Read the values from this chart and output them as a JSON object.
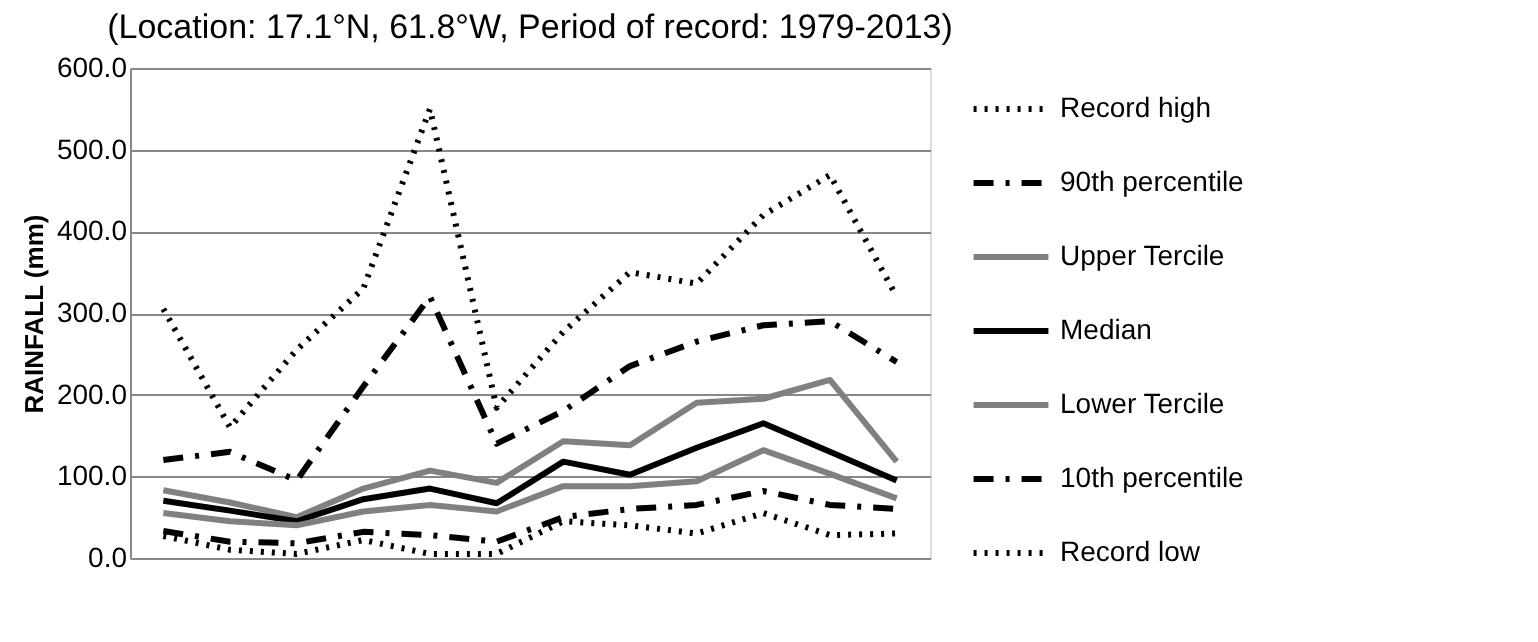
{
  "chart_data": {
    "type": "line",
    "title": "(Location: 17.1°N, 61.8°W, Period of record: 1979-2013)",
    "ylabel": "RAINFALL (mm)",
    "categories": [
      null,
      null,
      null,
      null,
      null,
      null,
      null,
      null,
      null,
      null,
      null,
      null
    ],
    "series": [
      {
        "name": "Record high",
        "color": "#000000",
        "line_style": "dotted",
        "values": [
          305,
          160,
          255,
          330,
          550,
          184,
          277,
          350,
          336,
          420,
          469,
          320
        ]
      },
      {
        "name": "90th percentile",
        "color": "#000000",
        "line_style": "dashdot",
        "values": [
          120,
          130,
          95,
          210,
          320,
          140,
          180,
          235,
          265,
          285,
          290,
          240
        ]
      },
      {
        "name": "Upper Tercile",
        "color": "#808080",
        "line_style": "solid",
        "values": [
          83,
          68,
          50,
          85,
          107,
          92,
          143,
          138,
          190,
          195,
          218,
          118
        ]
      },
      {
        "name": "Median",
        "color": "#000000",
        "line_style": "solid",
        "values": [
          70,
          58,
          45,
          72,
          85,
          67,
          118,
          102,
          135,
          165,
          130,
          95
        ]
      },
      {
        "name": "Lower Tercile",
        "color": "#808080",
        "line_style": "solid",
        "values": [
          55,
          45,
          40,
          57,
          65,
          57,
          88,
          88,
          94,
          132,
          103,
          73
        ]
      },
      {
        "name": "10th percentile",
        "color": "#000000",
        "line_style": "dashdot",
        "values": [
          33,
          20,
          18,
          32,
          28,
          20,
          50,
          60,
          65,
          82,
          65,
          60
        ]
      },
      {
        "name": "Record low",
        "color": "#000000",
        "line_style": "dotted",
        "values": [
          27,
          10,
          5,
          22,
          5,
          5,
          45,
          40,
          30,
          55,
          28,
          30
        ]
      }
    ],
    "ylim": [
      0,
      600
    ],
    "yticks": [
      {
        "value": 0,
        "label": "0.0"
      },
      {
        "value": 100,
        "label": "100.0"
      },
      {
        "value": 200,
        "label": "200.0"
      },
      {
        "value": 300,
        "label": "300.0"
      },
      {
        "value": 400,
        "label": "400.0"
      },
      {
        "value": 500,
        "label": "500.0"
      },
      {
        "value": 600,
        "label": "600.0"
      }
    ],
    "grid": "y",
    "legend": "right",
    "tick_labels": "y"
  }
}
